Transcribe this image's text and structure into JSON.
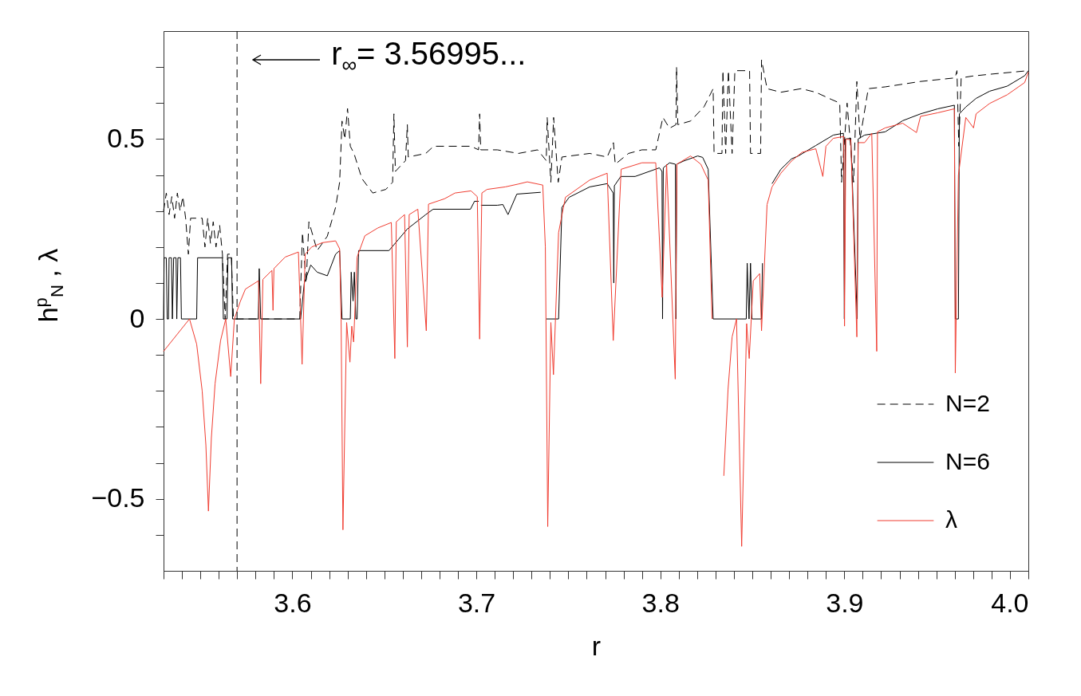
{
  "chart_data": {
    "type": "line",
    "xlabel": "r",
    "ylabel": "h$^{p}$$_{N}$ ,  λ",
    "xlim": [
      3.53,
      4.0
    ],
    "ylim": [
      -0.7,
      0.8
    ],
    "xticks": [
      {
        "value": 3.53,
        "label": null
      },
      {
        "value": 3.54,
        "label": null
      },
      {
        "value": 3.55,
        "label": null
      },
      {
        "value": 3.56,
        "label": null
      },
      {
        "value": 3.57,
        "label": null
      },
      {
        "value": 3.58,
        "label": null
      },
      {
        "value": 3.59,
        "label": null
      },
      3.6,
      {
        "value": 3.61,
        "label": null
      },
      {
        "value": 3.62,
        "label": null
      },
      {
        "value": 3.63,
        "label": null
      },
      {
        "value": 3.64,
        "label": null
      },
      {
        "value": 3.65,
        "label": null
      },
      {
        "value": 3.66,
        "label": null
      },
      {
        "value": 3.67,
        "label": null
      },
      {
        "value": 3.68,
        "label": null
      },
      {
        "value": 3.69,
        "label": null
      },
      3.7,
      {
        "value": 3.71,
        "label": null
      },
      {
        "value": 3.72,
        "label": null
      },
      {
        "value": 3.73,
        "label": null
      },
      {
        "value": 3.74,
        "label": null
      },
      {
        "value": 3.75,
        "label": null
      },
      {
        "value": 3.76,
        "label": null
      },
      {
        "value": 3.77,
        "label": null
      },
      {
        "value": 3.78,
        "label": null
      },
      {
        "value": 3.79,
        "label": null
      },
      3.8,
      {
        "value": 3.81,
        "label": null
      },
      {
        "value": 3.82,
        "label": null
      },
      {
        "value": 3.83,
        "label": null
      },
      {
        "value": 3.84,
        "label": null
      },
      {
        "value": 3.85,
        "label": null
      },
      {
        "value": 3.86,
        "label": null
      },
      {
        "value": 3.87,
        "label": null
      },
      {
        "value": 3.88,
        "label": null
      },
      {
        "value": 3.89,
        "label": null
      },
      3.9,
      {
        "value": 3.91,
        "label": null
      },
      {
        "value": 3.92,
        "label": null
      },
      {
        "value": 3.93,
        "label": null
      },
      {
        "value": 3.94,
        "label": null
      },
      {
        "value": 3.95,
        "label": null
      },
      {
        "value": 3.96,
        "label": null
      },
      {
        "value": 3.97,
        "label": null
      },
      {
        "value": 3.98,
        "label": null
      },
      {
        "value": 3.99,
        "label": null
      },
      {
        "value": 4.0,
        "label": "4.0"
      }
    ],
    "yticks": [
      {
        "value": -0.6,
        "label": null
      },
      {
        "value": -0.5,
        "label": "−0.5"
      },
      {
        "value": -0.4,
        "label": null
      },
      {
        "value": -0.3,
        "label": null
      },
      {
        "value": -0.2,
        "label": null
      },
      {
        "value": -0.1,
        "label": null
      },
      {
        "value": 0,
        "label": "0"
      },
      {
        "value": 0.1,
        "label": null
      },
      {
        "value": 0.2,
        "label": null
      },
      {
        "value": 0.3,
        "label": null
      },
      {
        "value": 0.4,
        "label": null
      },
      {
        "value": 0.5,
        "label": "0.5"
      },
      {
        "value": 0.6,
        "label": null
      },
      {
        "value": 0.7,
        "label": null
      }
    ],
    "grid": false,
    "legend": "bottom right",
    "marker": "none",
    "ref_lines": [
      {
        "axis": "x",
        "value": 3.56995,
        "color": "#000000",
        "line_style": "dashed"
      }
    ],
    "annotations": [
      {
        "text": "r$_{∞}$= 3.56995...",
        "x": 3.56995,
        "y": 0.72
      }
    ],
    "series": [
      {
        "name": "N=2",
        "color": "#000000",
        "line_style": "dashed",
        "x": [
          3.53,
          3.5315,
          3.533,
          3.5345,
          3.536,
          3.5375,
          3.539,
          3.5405,
          3.542,
          3.5435,
          3.5447,
          3.5455,
          3.551,
          3.5525,
          3.554,
          3.5555,
          3.557,
          3.5585,
          3.5605,
          3.562,
          3.5635,
          3.5648,
          3.5668,
          3.568,
          3.604,
          3.6055,
          3.6075,
          3.609,
          3.6135,
          3.619,
          3.6235,
          3.6257,
          3.627,
          3.6285,
          3.63,
          3.6315,
          3.6335,
          3.6378,
          3.6437,
          3.6508,
          3.6545,
          3.6552,
          3.656,
          3.6615,
          3.6625,
          3.663,
          3.6725,
          3.6768,
          3.6971,
          3.7012,
          3.7018,
          3.7024,
          3.7114,
          3.7229,
          3.7333,
          3.738,
          3.7385,
          3.7405,
          3.742,
          3.7445,
          3.7465,
          3.7616,
          3.7711,
          3.7745,
          3.7755,
          3.7827,
          3.79,
          3.7975,
          3.8014,
          3.805,
          3.8085,
          3.8088,
          3.8095,
          3.8164,
          3.8238,
          3.8287,
          3.8292,
          3.8335,
          3.834,
          3.8355,
          3.837,
          3.839,
          3.8405,
          3.8485,
          3.849,
          3.8545,
          3.855,
          3.858,
          3.8655,
          3.8765,
          3.8845,
          3.893,
          3.8975,
          3.8985,
          3.9015,
          3.905,
          3.9068,
          3.9085,
          3.913,
          3.9222,
          3.9414,
          3.9602,
          3.9612,
          3.9622,
          3.9635,
          3.9696,
          3.979,
          4.0
        ],
        "values": [
          0.3,
          0.35,
          0.29,
          0.34,
          0.28,
          0.35,
          0.3,
          0.34,
          0.28,
          0.18,
          0.28,
          0.28,
          0.28,
          0.2,
          0.28,
          0.21,
          0.27,
          0.2,
          0.26,
          0.18,
          0,
          0.18,
          0.18,
          0,
          0,
          0.24,
          0.1,
          0.27,
          0.19,
          0.23,
          0.31,
          0.38,
          0.55,
          0.5,
          0.585,
          0.48,
          0.46,
          0.39,
          0.35,
          0.36,
          0.38,
          0.57,
          0.41,
          0.44,
          0.54,
          0.45,
          0.46,
          0.48,
          0.48,
          0.47,
          0.57,
          0.47,
          0.47,
          0.46,
          0.47,
          0.44,
          0.56,
          0.38,
          0.56,
          0.38,
          0.45,
          0.46,
          0.45,
          0.49,
          0.43,
          0.46,
          0.47,
          0.47,
          0.56,
          0.53,
          0.54,
          0.7,
          0.54,
          0.55,
          0.59,
          0.64,
          0.46,
          0.46,
          0.69,
          0.46,
          0.69,
          0.46,
          0.69,
          0.69,
          0.46,
          0.46,
          0.72,
          0.64,
          0.63,
          0.64,
          0.63,
          0.61,
          0.6,
          0.38,
          0.6,
          0.38,
          0.66,
          0.5,
          0.64,
          0.645,
          0.66,
          0.67,
          0.69,
          0.48,
          0.67,
          0.675,
          0.68,
          0.69
        ]
      },
      {
        "name": "N=6",
        "color": "#000000",
        "line_style": "solid",
        "x": [
          3.53,
          3.5303,
          3.5315,
          3.532,
          3.5327,
          3.533,
          3.5343,
          3.5348,
          3.5355,
          3.5368,
          3.5372,
          3.5378,
          3.5392,
          3.5397,
          3.548,
          3.5485,
          3.562,
          3.5625,
          3.5645,
          3.565,
          3.567,
          3.5675,
          3.5815,
          3.582,
          3.5828,
          3.6045,
          3.6065,
          3.61,
          3.6135,
          3.619,
          3.6235,
          3.6257,
          3.627,
          3.6315,
          3.632,
          3.633,
          3.6337,
          3.6345,
          3.6352,
          3.636,
          3.6525,
          3.6575,
          3.6625,
          3.6725,
          3.6765,
          3.6968,
          3.699,
          3.7013,
          3.7018,
          3.7025,
          3.7114,
          3.7144,
          3.7172,
          3.722,
          3.735,
          3.7365,
          3.738,
          3.7447,
          3.7465,
          3.7504,
          3.7616,
          3.7711,
          3.7744,
          3.7747,
          3.775,
          3.7785,
          3.7863,
          3.7995,
          3.8009,
          3.8012,
          3.8016,
          3.805,
          3.8082,
          3.8085,
          3.8089,
          3.8127,
          3.8203,
          3.823,
          3.826,
          3.8287,
          3.8467,
          3.8472,
          3.8482,
          3.849,
          3.8498,
          3.855,
          3.8555,
          3.858,
          3.8607,
          3.8655,
          3.8713,
          3.875,
          3.8845,
          3.894,
          3.8995,
          3.9,
          3.9005,
          3.9035,
          3.907,
          3.9075,
          3.911,
          3.9222,
          3.9317,
          3.9414,
          3.9508,
          3.9598,
          3.9603,
          3.962,
          3.9625,
          3.966,
          3.9716,
          3.979,
          3.9885,
          3.998,
          4.0
        ],
        "values": [
          0,
          0.17,
          0.17,
          0,
          0,
          0.17,
          0.17,
          0,
          0.17,
          0.17,
          0,
          0.17,
          0.17,
          0,
          0,
          0.17,
          0.17,
          0,
          0,
          0.17,
          0.17,
          0,
          0,
          0.14,
          0,
          0,
          0.1,
          0.15,
          0.13,
          0.12,
          0.18,
          0.19,
          0,
          0,
          0.13,
          0.05,
          0.13,
          0,
          0,
          0.19,
          0.19,
          0.22,
          0.25,
          0.29,
          0.305,
          0.305,
          0.327,
          0.327,
          null,
          0.316,
          0.316,
          0.318,
          0.29,
          0.347,
          0.352,
          null,
          0,
          0,
          0.31,
          0.338,
          0.367,
          0.376,
          0.35,
          0.1,
          0.37,
          0.396,
          0.396,
          0.42,
          0.41,
          0,
          0.42,
          0.434,
          0.43,
          0,
          0.43,
          0.439,
          0.453,
          0.449,
          0.416,
          0,
          0,
          0.155,
          0,
          0.155,
          0,
          0,
          0.155,
          null,
          0.376,
          0.416,
          0.445,
          0.453,
          0.482,
          0.511,
          0.516,
          0,
          0.5,
          0.502,
          0,
          0.5,
          0.511,
          0.52,
          0.551,
          0.57,
          0.584,
          0.594,
          0,
          0,
          0.57,
          0.589,
          0.613,
          0.633,
          0.647,
          0.676,
          0.69
        ]
      },
      {
        "name": "λ",
        "color": "#f03c30",
        "line_style": "solid",
        "x": [
          3.53,
          3.5441,
          3.548,
          3.551,
          3.553,
          3.5544,
          3.556,
          3.558,
          3.561,
          3.5638,
          3.5665,
          3.5685,
          3.5716,
          3.5745,
          3.5816,
          3.5828,
          3.584,
          3.5889,
          3.5895,
          3.59,
          3.5961,
          3.6033,
          3.6053,
          3.607,
          3.6105,
          3.6163,
          3.6235,
          3.6257,
          3.6265,
          3.6275,
          3.6295,
          3.6313,
          3.6323,
          3.6333,
          3.6352,
          3.6394,
          3.6465,
          3.6538,
          3.6557,
          3.6565,
          3.661,
          3.6625,
          3.6635,
          3.6682,
          3.6728,
          3.674,
          3.6827,
          3.6884,
          3.6971,
          3.7005,
          3.7018,
          3.703,
          3.7058,
          3.7157,
          3.7229,
          3.7277,
          3.7361,
          3.7375,
          3.7388,
          3.7405,
          3.7419,
          3.7447,
          3.7484,
          3.7616,
          3.7711,
          3.7744,
          3.7787,
          3.79,
          3.7975,
          3.801,
          3.8034,
          3.8081,
          3.809,
          3.8164,
          3.822,
          3.826,
          3.8281,
          3.831,
          3.8324,
          3.8345,
          3.8368,
          3.839,
          3.8414,
          3.8442,
          3.8469,
          3.8483,
          3.8505,
          3.854,
          3.855,
          3.858,
          3.8607,
          3.8655,
          3.8713,
          3.877,
          3.8845,
          3.8883,
          3.89,
          3.894,
          3.8997,
          3.9001,
          3.9008,
          3.9035,
          3.9068,
          3.9075,
          3.911,
          3.9149,
          3.9176,
          3.918,
          3.9222,
          3.9317,
          3.9392,
          3.9414,
          3.9508,
          3.9598,
          3.9603,
          3.962,
          3.966,
          3.9702,
          3.9716,
          3.979,
          3.9885,
          3.998,
          4.0
        ],
        "values": [
          -0.09,
          0,
          -0.07,
          -0.2,
          -0.35,
          -0.534,
          -0.33,
          -0.18,
          -0.06,
          0,
          -0.16,
          0,
          0.047,
          0.083,
          0.106,
          -0.18,
          0.11,
          0.135,
          0.024,
          0.14,
          0.172,
          0.186,
          -0.126,
          0.18,
          0.2,
          0.212,
          0.217,
          0.195,
          0,
          -0.586,
          -0.01,
          -0.12,
          -0.02,
          -0.064,
          0.172,
          0.231,
          0.253,
          0.268,
          -0.11,
          0.27,
          0.29,
          -0.078,
          0.29,
          0.305,
          -0.033,
          0.319,
          0.334,
          0.35,
          0.356,
          0.34,
          -0.056,
          0.35,
          0.36,
          0.367,
          0.375,
          0.381,
          0.372,
          0.2,
          -0.577,
          -0.01,
          -0.155,
          0.24,
          0.338,
          0.386,
          0.405,
          -0.06,
          0.416,
          0.434,
          0.434,
          0.06,
          0.43,
          -0.167,
          0.43,
          0.453,
          0.43,
          0.386,
          0,
          null,
          null,
          -0.436,
          -0.195,
          -0.05,
          0,
          -0.632,
          -0.013,
          -0.11,
          0.106,
          0.126,
          -0.033,
          0.318,
          0.367,
          0.405,
          0.439,
          0.463,
          0.473,
          0.396,
          0.48,
          0.502,
          0.507,
          -0.02,
          0.5,
          0.498,
          -0.05,
          0.49,
          0.49,
          0.516,
          -0.09,
          0.52,
          0.531,
          0.544,
          0.518,
          0.563,
          0.573,
          0.584,
          -0.15,
          0.4,
          0.56,
          0.531,
          0.57,
          0.599,
          0.623,
          0.657,
          0.686
        ]
      }
    ]
  }
}
